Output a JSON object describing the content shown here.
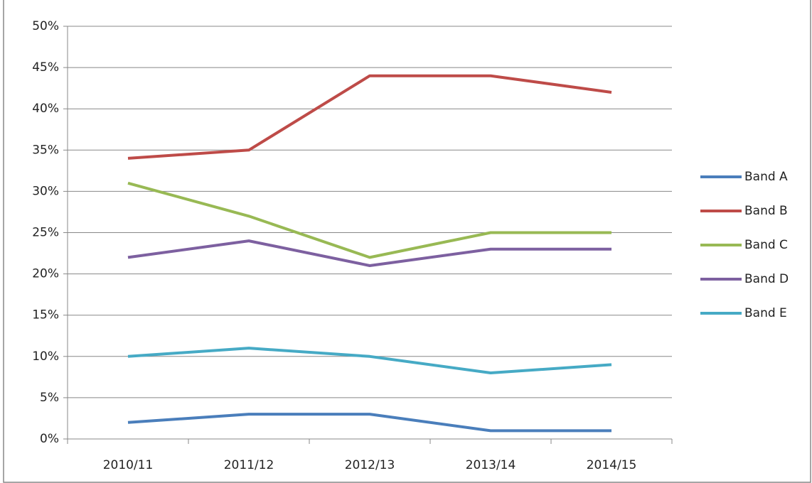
{
  "chart_data": {
    "type": "line",
    "categories": [
      "2010/11",
      "2011/12",
      "2012/13",
      "2013/14",
      "2014/15"
    ],
    "series": [
      {
        "name": "Band A",
        "color": "#4a7ebb",
        "values": [
          2,
          3,
          3,
          1,
          1
        ]
      },
      {
        "name": "Band B",
        "color": "#be4b48",
        "values": [
          34,
          35,
          44,
          44,
          42
        ]
      },
      {
        "name": "Band C",
        "color": "#98b954",
        "values": [
          31,
          27,
          22,
          25,
          25
        ]
      },
      {
        "name": "Band D",
        "color": "#7d60a0",
        "values": [
          22,
          24,
          21,
          23,
          23
        ]
      },
      {
        "name": "Band E",
        "color": "#46aac5",
        "values": [
          10,
          11,
          10,
          8,
          9
        ]
      }
    ],
    "ylim": [
      0,
      50
    ],
    "yticks": [
      {
        "value": 0,
        "label": "0%"
      },
      {
        "value": 5,
        "label": "5%"
      },
      {
        "value": 10,
        "label": "10%"
      },
      {
        "value": 15,
        "label": "15%"
      },
      {
        "value": 20,
        "label": "20%"
      },
      {
        "value": 25,
        "label": "25%"
      },
      {
        "value": 30,
        "label": "30%"
      },
      {
        "value": 35,
        "label": "35%"
      },
      {
        "value": 40,
        "label": "40%"
      },
      {
        "value": 45,
        "label": "45%"
      },
      {
        "value": 50,
        "label": "50%"
      }
    ],
    "grid": true,
    "legend": "right"
  }
}
